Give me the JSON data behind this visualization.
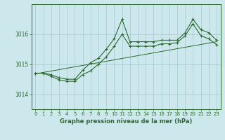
{
  "title": "Graphe pression niveau de la mer (hPa)",
  "bg_color": "#cce8ec",
  "grid_color": "#aacdd4",
  "line_color": "#2d6a2d",
  "xlim": [
    -0.5,
    23.5
  ],
  "ylim": [
    1013.5,
    1017.0
  ],
  "yticks": [
    1014,
    1015,
    1016
  ],
  "xticks": [
    0,
    1,
    2,
    3,
    4,
    5,
    6,
    7,
    8,
    9,
    10,
    11,
    12,
    13,
    14,
    15,
    16,
    17,
    18,
    19,
    20,
    21,
    22,
    23
  ],
  "series1_x": [
    0,
    1,
    2,
    3,
    4,
    5,
    6,
    7,
    8,
    9,
    10,
    11,
    12,
    13,
    14,
    15,
    16,
    17,
    18,
    19,
    20,
    21,
    22,
    23
  ],
  "series1_y": [
    1014.7,
    1014.7,
    1014.65,
    1014.55,
    1014.5,
    1014.5,
    1014.8,
    1015.05,
    1015.2,
    1015.5,
    1015.85,
    1016.5,
    1015.75,
    1015.75,
    1015.75,
    1015.75,
    1015.8,
    1015.8,
    1015.8,
    1016.05,
    1016.5,
    1016.15,
    1016.05,
    1015.8
  ],
  "series2_x": [
    0,
    1,
    2,
    3,
    4,
    5,
    6,
    7,
    8,
    9,
    10,
    11,
    12,
    13,
    14,
    15,
    16,
    17,
    18,
    19,
    20,
    21,
    22,
    23
  ],
  "series2_y": [
    1014.7,
    1014.7,
    1014.6,
    1014.48,
    1014.43,
    1014.43,
    1014.65,
    1014.78,
    1015.0,
    1015.25,
    1015.6,
    1016.0,
    1015.6,
    1015.6,
    1015.6,
    1015.6,
    1015.68,
    1015.68,
    1015.72,
    1015.95,
    1016.35,
    1015.95,
    1015.85,
    1015.65
  ],
  "series3_x": [
    0,
    23
  ],
  "series3_y": [
    1014.68,
    1015.75
  ]
}
